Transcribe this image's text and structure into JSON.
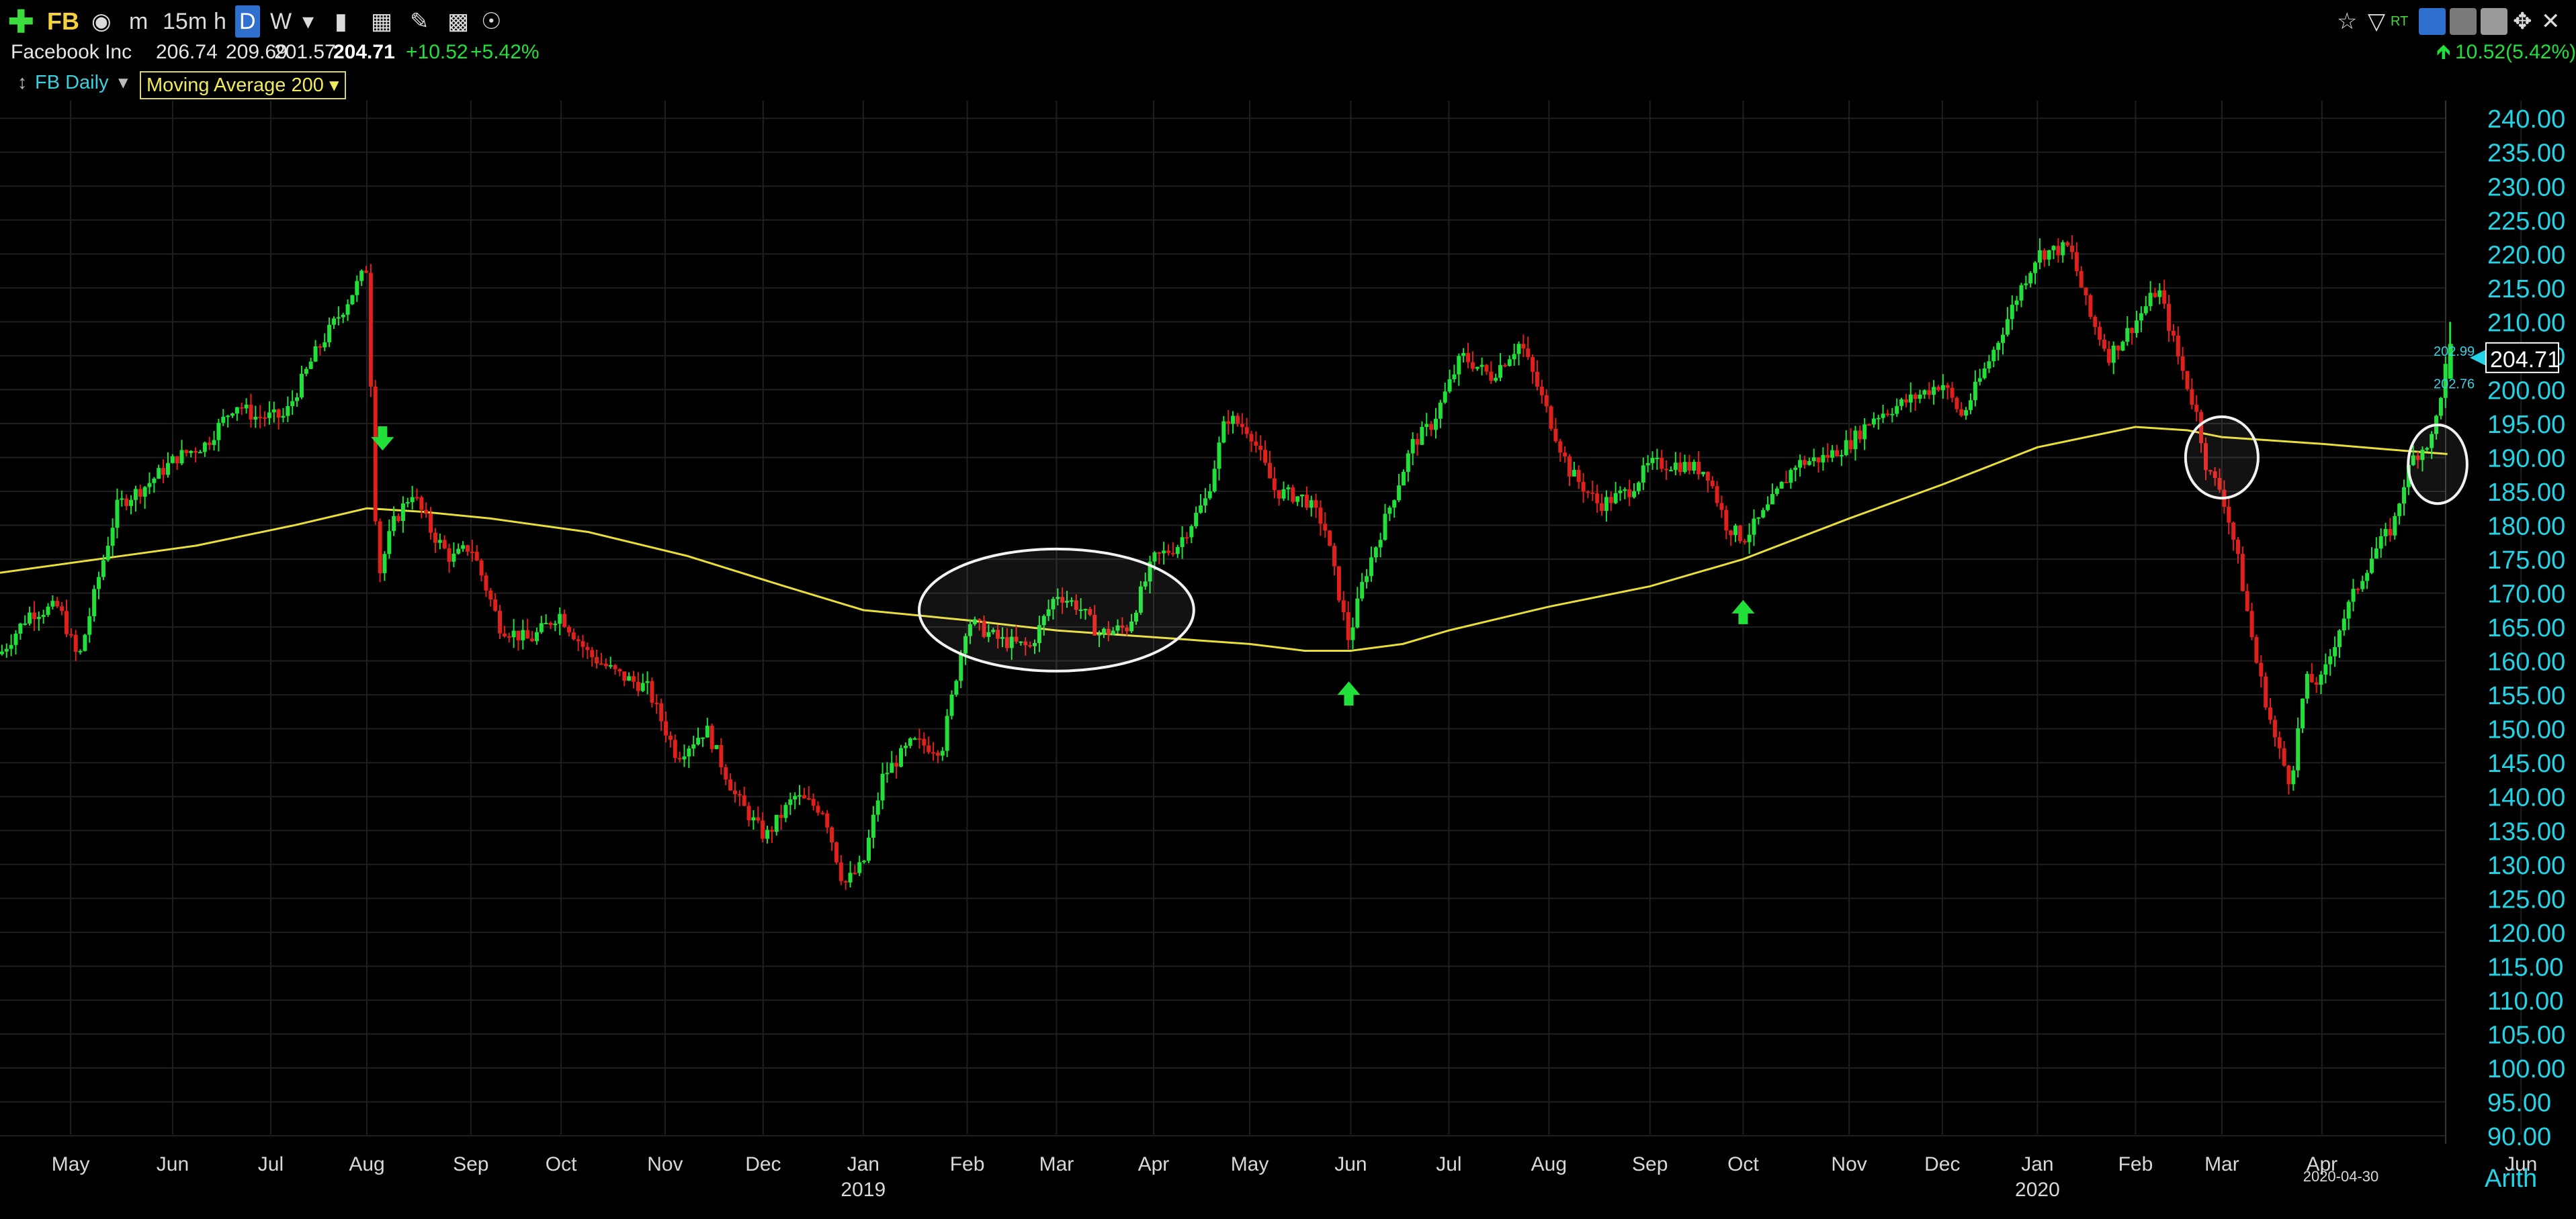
{
  "toolbar": {
    "symbol": "FB",
    "intervals": [
      "m",
      "15m",
      "h",
      "D",
      "W"
    ],
    "selected_interval": "D",
    "rt_label": "RT"
  },
  "quote": {
    "name": "Facebook Inc",
    "open": "206.74",
    "high": "209.69",
    "low": "201.57",
    "last": "204.71",
    "change": "+10.52",
    "change_pct": "+5.42%",
    "right_change": "10.52(5.42%)"
  },
  "legend": {
    "series_label": "FB Daily",
    "indicator_label": "Moving Average 200"
  },
  "colors": {
    "up": "#22e03a",
    "down": "#e0201a",
    "ma": "#e8de3a",
    "axis": "#22d4e6",
    "grid": "#1f1f1f"
  },
  "chart_data": {
    "type": "candlestick",
    "ylim": [
      90,
      242
    ],
    "y_ticks": [
      "240.00",
      "235.00",
      "230.00",
      "225.00",
      "220.00",
      "215.00",
      "210.00",
      "205.00",
      "200.00",
      "195.00",
      "190.00",
      "185.00",
      "180.00",
      "175.00",
      "170.00",
      "165.00",
      "160.00",
      "155.00",
      "150.00",
      "145.00",
      "140.00",
      "135.00",
      "130.00",
      "125.00",
      "120.00",
      "115.00",
      "110.00",
      "105.00",
      "100.00",
      "95.00",
      "90.00"
    ],
    "x_months": [
      {
        "label": "May",
        "t": 0.72
      },
      {
        "label": "Jun",
        "t": 1.76
      },
      {
        "label": "Jul",
        "t": 2.76
      },
      {
        "label": "Aug",
        "t": 3.74
      },
      {
        "label": "Sep",
        "t": 4.8
      },
      {
        "label": "Oct",
        "t": 5.72
      },
      {
        "label": "Nov",
        "t": 6.78
      },
      {
        "label": "Dec",
        "t": 7.78
      },
      {
        "label": "Jan",
        "t": 8.8
      },
      {
        "label": "Feb",
        "t": 9.86
      },
      {
        "label": "Mar",
        "t": 10.77
      },
      {
        "label": "Apr",
        "t": 11.76
      },
      {
        "label": "May",
        "t": 12.74
      },
      {
        "label": "Jun",
        "t": 13.77
      },
      {
        "label": "Jul",
        "t": 14.77
      },
      {
        "label": "Aug",
        "t": 15.79
      },
      {
        "label": "Sep",
        "t": 16.82
      },
      {
        "label": "Oct",
        "t": 17.77
      },
      {
        "label": "Nov",
        "t": 18.85
      },
      {
        "label": "Dec",
        "t": 19.8
      },
      {
        "label": "Jan",
        "t": 20.77
      },
      {
        "label": "Feb",
        "t": 21.77
      },
      {
        "label": "Mar",
        "t": 22.65
      },
      {
        "label": "Apr",
        "t": 23.67
      },
      {
        "label": "Jun",
        "t": 25.7
      }
    ],
    "x_years": [
      {
        "label": "2019",
        "t": 8.8
      },
      {
        "label": "2020",
        "t": 20.77
      }
    ],
    "last_date": "2020-04-30",
    "last_price": "204.71",
    "bid": "202.99",
    "ask": "202.76",
    "scale": "Arith",
    "price_path": [
      [
        0,
        161
      ],
      [
        0.3,
        167
      ],
      [
        0.6,
        168
      ],
      [
        0.8,
        160
      ],
      [
        1.0,
        172
      ],
      [
        1.2,
        183
      ],
      [
        1.5,
        186
      ],
      [
        1.8,
        190
      ],
      [
        2.1,
        192
      ],
      [
        2.4,
        198
      ],
      [
        2.6,
        196
      ],
      [
        2.9,
        196
      ],
      [
        3.2,
        205
      ],
      [
        3.5,
        212
      ],
      [
        3.74,
        218
      ],
      [
        3.85,
        172
      ],
      [
        4.0,
        180
      ],
      [
        4.2,
        185
      ],
      [
        4.4,
        179
      ],
      [
        4.6,
        175
      ],
      [
        4.8,
        177
      ],
      [
        5.1,
        165
      ],
      [
        5.4,
        163
      ],
      [
        5.7,
        167
      ],
      [
        6.0,
        161
      ],
      [
        6.3,
        158
      ],
      [
        6.6,
        156
      ],
      [
        6.9,
        146
      ],
      [
        7.2,
        150
      ],
      [
        7.5,
        140
      ],
      [
        7.8,
        134
      ],
      [
        8.1,
        140
      ],
      [
        8.4,
        138
      ],
      [
        8.6,
        127
      ],
      [
        8.8,
        130
      ],
      [
        9.0,
        143
      ],
      [
        9.3,
        148
      ],
      [
        9.6,
        147
      ],
      [
        9.86,
        166
      ],
      [
        10.2,
        163
      ],
      [
        10.5,
        162
      ],
      [
        10.77,
        170
      ],
      [
        11.0,
        168
      ],
      [
        11.2,
        164
      ],
      [
        11.5,
        165
      ],
      [
        11.76,
        175
      ],
      [
        12.0,
        177
      ],
      [
        12.3,
        184
      ],
      [
        12.5,
        196
      ],
      [
        12.74,
        194
      ],
      [
        13.0,
        185
      ],
      [
        13.3,
        184
      ],
      [
        13.5,
        180
      ],
      [
        13.75,
        163
      ],
      [
        13.9,
        172
      ],
      [
        14.1,
        180
      ],
      [
        14.4,
        192
      ],
      [
        14.6,
        195
      ],
      [
        14.9,
        205
      ],
      [
        15.2,
        202
      ],
      [
        15.5,
        207
      ],
      [
        15.79,
        196
      ],
      [
        16.0,
        188
      ],
      [
        16.3,
        183
      ],
      [
        16.6,
        185
      ],
      [
        16.82,
        189
      ],
      [
        17.1,
        189
      ],
      [
        17.4,
        188
      ],
      [
        17.6,
        180
      ],
      [
        17.77,
        178
      ],
      [
        18.0,
        182
      ],
      [
        18.3,
        189
      ],
      [
        18.6,
        190
      ],
      [
        18.85,
        192
      ],
      [
        19.1,
        196
      ],
      [
        19.4,
        198
      ],
      [
        19.8,
        201
      ],
      [
        20.0,
        196
      ],
      [
        20.3,
        205
      ],
      [
        20.6,
        215
      ],
      [
        20.77,
        220
      ],
      [
        21.1,
        221
      ],
      [
        21.3,
        211
      ],
      [
        21.5,
        205
      ],
      [
        21.77,
        210
      ],
      [
        22.0,
        215
      ],
      [
        22.2,
        205
      ],
      [
        22.4,
        196
      ],
      [
        22.5,
        188
      ],
      [
        22.65,
        185
      ],
      [
        22.8,
        176
      ],
      [
        23.0,
        160
      ],
      [
        23.2,
        148
      ],
      [
        23.35,
        142
      ],
      [
        23.5,
        157
      ],
      [
        23.67,
        157
      ],
      [
        23.85,
        165
      ],
      [
        24.0,
        170
      ],
      [
        24.2,
        176
      ],
      [
        24.4,
        180
      ],
      [
        24.5,
        186
      ],
      [
        24.6,
        190
      ],
      [
        24.8,
        193
      ],
      [
        24.95,
        204.71
      ]
    ],
    "ma_path": [
      [
        0,
        173
      ],
      [
        1.0,
        175
      ],
      [
        2.0,
        177
      ],
      [
        3.0,
        180
      ],
      [
        3.74,
        182.5
      ],
      [
        4.3,
        182
      ],
      [
        5.0,
        181
      ],
      [
        6.0,
        179
      ],
      [
        7.0,
        175.5
      ],
      [
        8.0,
        171
      ],
      [
        8.8,
        167.5
      ],
      [
        9.86,
        166
      ],
      [
        10.77,
        164.5
      ],
      [
        11.76,
        163.5
      ],
      [
        12.74,
        162.5
      ],
      [
        13.3,
        161.5
      ],
      [
        13.77,
        161.5
      ],
      [
        14.3,
        162.5
      ],
      [
        14.77,
        164.5
      ],
      [
        15.79,
        168
      ],
      [
        16.82,
        171
      ],
      [
        17.77,
        175
      ],
      [
        18.85,
        181
      ],
      [
        19.8,
        186
      ],
      [
        20.77,
        191.5
      ],
      [
        21.77,
        194.5
      ],
      [
        22.3,
        194
      ],
      [
        22.65,
        193
      ],
      [
        23.67,
        192
      ],
      [
        24.5,
        191
      ],
      [
        24.95,
        190.5
      ]
    ],
    "annotations": [
      {
        "type": "arrow-down",
        "t": 3.9,
        "price": 193
      },
      {
        "type": "arrow-up",
        "t": 13.75,
        "price": 155
      },
      {
        "type": "arrow-up",
        "t": 17.77,
        "price": 167
      },
      {
        "type": "ellipse",
        "t": 10.77,
        "price": 167.5,
        "rt": 1.4,
        "rp": 9
      },
      {
        "type": "ellipse",
        "t": 22.65,
        "price": 190,
        "rt": 0.37,
        "rp": 6
      },
      {
        "type": "ellipse",
        "t": 24.85,
        "price": 189,
        "rt": 0.3,
        "rp": 5.8
      }
    ]
  }
}
